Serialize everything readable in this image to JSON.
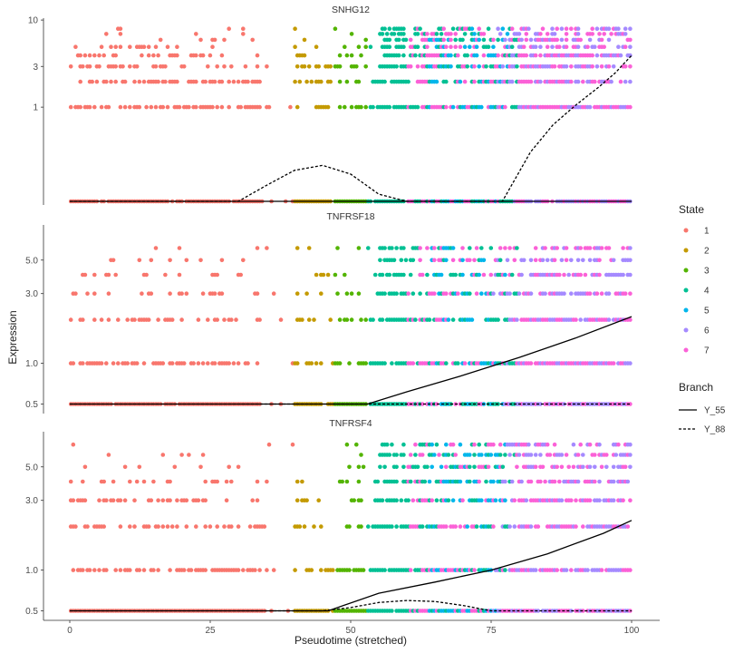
{
  "chart_data": {
    "type": "scatter",
    "xlabel": "Pseudotime (stretched)",
    "ylabel": "Expression",
    "xlim": [
      0,
      100
    ],
    "xticks": [
      0,
      25,
      50,
      75,
      100
    ],
    "y_scale": "log10(expression + 0.1)",
    "legend_state": {
      "title": "State",
      "placement": "right",
      "items": [
        {
          "label": "1",
          "color": "#F8766D"
        },
        {
          "label": "2",
          "color": "#C49A00"
        },
        {
          "label": "3",
          "color": "#53B400"
        },
        {
          "label": "4",
          "color": "#00C094"
        },
        {
          "label": "5",
          "color": "#00B6EB"
        },
        {
          "label": "6",
          "color": "#A58AFF"
        },
        {
          "label": "7",
          "color": "#FB61D7"
        }
      ]
    },
    "legend_branch": {
      "title": "Branch",
      "placement": "right",
      "items": [
        {
          "label": "Y_55",
          "linestyle": "solid"
        },
        {
          "label": "Y_88",
          "linestyle": "dashed"
        }
      ]
    },
    "state_ranges": [
      {
        "state": "1",
        "x": [
          0,
          39
        ]
      },
      {
        "state": "2",
        "x": [
          40,
          47
        ]
      },
      {
        "state": "3",
        "x": [
          47,
          53
        ]
      },
      {
        "state": "4",
        "x": [
          53,
          80
        ]
      },
      {
        "state": "5",
        "x": [
          64,
          78
        ]
      },
      {
        "state": "6",
        "x": [
          75,
          100
        ]
      },
      {
        "state": "7",
        "x": [
          60,
          100
        ]
      }
    ],
    "panels": [
      {
        "title": "SNHG12",
        "yticks": [
          "1",
          "3",
          "10"
        ],
        "ytick_values": [
          1,
          3,
          10
        ],
        "ylim": [
          0.0,
          10.5
        ],
        "expression_levels": [
          0,
          1,
          2,
          3,
          4,
          5,
          6,
          7,
          8
        ],
        "curves": [
          {
            "name": "Y_55",
            "x": [
              0,
              40,
              50,
              60,
              70,
              80,
              90,
              100
            ],
            "y": [
              0,
              0,
              0,
              0,
              0,
              0,
              0,
              0
            ]
          },
          {
            "name": "Y_88",
            "x": [
              0,
              30,
              35,
              40,
              45,
              50,
              55,
              60,
              70,
              77,
              82,
              86,
              90,
              94,
              97,
              100
            ],
            "y": [
              0,
              0,
              0.05,
              0.12,
              0.15,
              0.1,
              0.02,
              0,
              0,
              0,
              0.25,
              0.6,
              1.05,
              1.7,
              2.5,
              4.0
            ]
          }
        ]
      },
      {
        "title": "TNFRSF18",
        "yticks": [
          "0.5",
          "1.0",
          "3.0",
          "5.0"
        ],
        "ytick_values": [
          0.5,
          1.0,
          3.0,
          5.0
        ],
        "ylim": [
          0.45,
          8.5
        ],
        "expression_levels": [
          0.5,
          1,
          2,
          3,
          4,
          5,
          6
        ],
        "curves": [
          {
            "name": "Y_55",
            "x": [
              0,
              40,
              53,
              60,
              70,
              80,
              90,
              100
            ],
            "y": [
              0.5,
              0.5,
              0.5,
              0.62,
              0.82,
              1.1,
              1.5,
              2.1
            ]
          },
          {
            "name": "Y_88",
            "x": [
              0,
              50,
              100
            ],
            "y": [
              0.5,
              0.5,
              0.5
            ]
          }
        ]
      },
      {
        "title": "TNFRSF4",
        "yticks": [
          "0.5",
          "1.0",
          "3.0",
          "5.0"
        ],
        "ytick_values": [
          0.5,
          1.0,
          3.0,
          5.0
        ],
        "ylim": [
          0.45,
          8.5
        ],
        "expression_levels": [
          0.5,
          1,
          2,
          3,
          4,
          5,
          6,
          7
        ],
        "curves": [
          {
            "name": "Y_55",
            "x": [
              0,
              40,
              46,
              55,
              65,
              75,
              85,
              95,
              100
            ],
            "y": [
              0.5,
              0.5,
              0.5,
              0.68,
              0.82,
              1.0,
              1.3,
              1.8,
              2.2
            ]
          },
          {
            "name": "Y_88",
            "x": [
              0,
              45,
              50,
              55,
              60,
              65,
              70,
              75,
              100
            ],
            "y": [
              0.5,
              0.5,
              0.53,
              0.58,
              0.6,
              0.59,
              0.55,
              0.5,
              0.5
            ]
          }
        ]
      }
    ]
  }
}
